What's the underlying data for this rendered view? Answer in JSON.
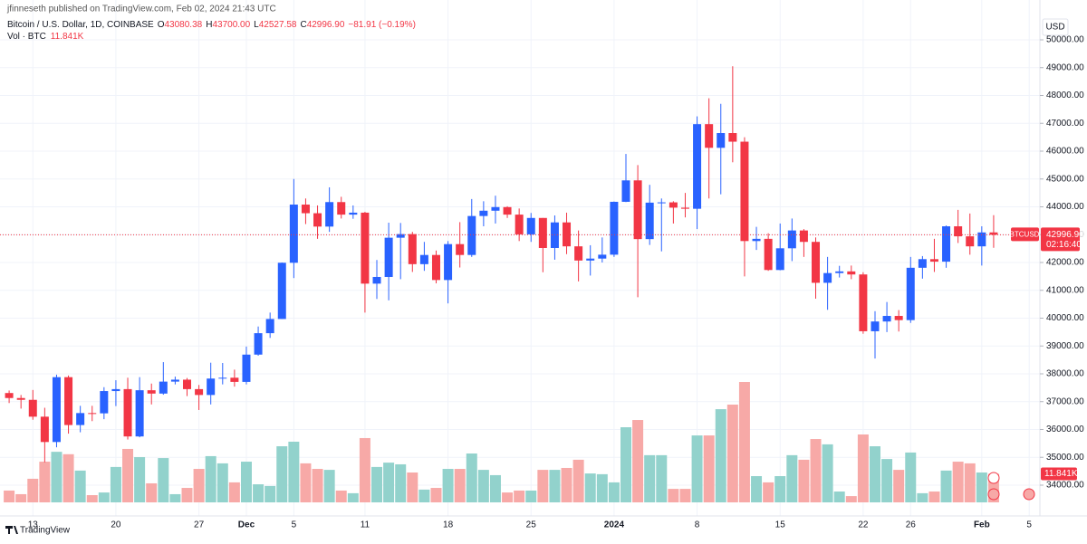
{
  "chart_data": {
    "type": "candlestick",
    "attribution": "jfinneseth published on TradingView.com, Feb 02, 2024 21:43 UTC",
    "symbol_line": "Bitcoin / U.S. Dollar, 1D, COINBASE",
    "ohlc_labels": [
      {
        "key": "O",
        "label": "43080.38"
      },
      {
        "key": "H",
        "label": "43700.00"
      },
      {
        "key": "L",
        "label": "42527.58"
      },
      {
        "key": "C",
        "label": "42996.90"
      }
    ],
    "change_label": "−81.91 (−0.19%)",
    "volume_title": "Vol · BTC",
    "volume_label": "11.841K",
    "currency": "USD",
    "brand": "TradingView",
    "last_price": {
      "symbol": "BTCUSD",
      "label": "42996.90",
      "countdown": "02:16:40"
    },
    "up_color": "#2962ff",
    "down_color": "#f23645",
    "volume_up_color": "#92d2cc",
    "volume_down_color": "#f7a9a7",
    "grid": true,
    "xlim": [
      -0.77,
      86.9
    ],
    "xticks": [
      {
        "value": 2,
        "label": "13"
      },
      {
        "value": 9,
        "label": "20"
      },
      {
        "value": 16,
        "label": "27"
      },
      {
        "value": 20,
        "label": "Dec"
      },
      {
        "value": 24,
        "label": "5"
      },
      {
        "value": 30,
        "label": "11"
      },
      {
        "value": 37,
        "label": "18"
      },
      {
        "value": 44,
        "label": "25"
      },
      {
        "value": 51,
        "label": "2024"
      },
      {
        "value": 58,
        "label": "8"
      },
      {
        "value": 65,
        "label": "15"
      },
      {
        "value": 72,
        "label": "22"
      },
      {
        "value": 76,
        "label": "26"
      },
      {
        "value": 82,
        "label": "Feb"
      },
      {
        "value": 86,
        "label": "5"
      }
    ],
    "ylim": [
      33024,
      50455
    ],
    "yticks": [
      {
        "value": 34000,
        "label": "34000.00"
      },
      {
        "value": 35000,
        "label": "35000.00"
      },
      {
        "value": 36000,
        "label": "36000.00"
      },
      {
        "value": 37000,
        "label": "37000.00"
      },
      {
        "value": 38000,
        "label": "38000.00"
      },
      {
        "value": 39000,
        "label": "39000.00"
      },
      {
        "value": 40000,
        "label": "40000.00"
      },
      {
        "value": 41000,
        "label": "41000.00"
      },
      {
        "value": 42000,
        "label": "42000.00"
      },
      {
        "value": 43000,
        "label": "43000.00"
      },
      {
        "value": 44000,
        "label": "44000.00"
      },
      {
        "value": 45000,
        "label": "45000.00"
      },
      {
        "value": 46000,
        "label": "46000.00"
      },
      {
        "value": 47000,
        "label": "47000.00"
      },
      {
        "value": 48000,
        "label": "48000.00"
      },
      {
        "value": 49000,
        "label": "49000.00"
      },
      {
        "value": 50000,
        "label": "50000.00"
      }
    ],
    "open": [
      37310,
      37130,
      37065,
      36460,
      35550,
      37880,
      36160,
      36590,
      36580,
      37380,
      37450,
      35750,
      37410,
      37290,
      37720,
      37790,
      37450,
      37240,
      37830,
      37860,
      37710,
      38690,
      39460,
      39970,
      41990,
      44080,
      43770,
      43290,
      44170,
      43720,
      43790,
      41240,
      41480,
      42890,
      43020,
      41940,
      42270,
      41370,
      42660,
      42270,
      43670,
      43860,
      43990,
      43720,
      43010,
      43600,
      42520,
      43440,
      42580,
      42070,
      42140,
      42280,
      44180,
      44950,
      42840,
      44150,
      44160,
      43970,
      43930,
      46970,
      46120,
      46650,
      46340,
      42770,
      42850,
      41730,
      42510,
      43150,
      42740,
      41270,
      41620,
      41680,
      41570,
      39530,
      39880,
      40080,
      39930,
      41810,
      42120,
      42030,
      43300,
      42940,
      42580,
      43080.38
    ],
    "high": [
      37400,
      37240,
      37420,
      36780,
      37970,
      37940,
      36850,
      36850,
      37520,
      37770,
      37860,
      37880,
      37650,
      38420,
      37900,
      37850,
      37600,
      38400,
      38390,
      38150,
      38980,
      39700,
      40200,
      42000,
      45000,
      44300,
      44050,
      44700,
      44360,
      44050,
      43820,
      42090,
      43430,
      43420,
      43100,
      42740,
      42430,
      42770,
      43450,
      44280,
      44200,
      44400,
      44020,
      43940,
      43780,
      43600,
      43690,
      43790,
      43150,
      42620,
      42900,
      44190,
      45900,
      45500,
      44790,
      44300,
      44200,
      44500,
      47250,
      47900,
      47700,
      49050,
      46500,
      43280,
      43050,
      43400,
      43580,
      43200,
      42900,
      42200,
      41880,
      41890,
      41650,
      40250,
      40580,
      40290,
      42200,
      42230,
      42850,
      43330,
      43890,
      43760,
      43300,
      43700
    ],
    "low": [
      36950,
      36750,
      36350,
      34820,
      35360,
      35850,
      35900,
      36300,
      36370,
      36840,
      35640,
      35720,
      36900,
      37250,
      37620,
      37200,
      36700,
      36900,
      37620,
      37540,
      37620,
      38650,
      39290,
      39970,
      41440,
      43380,
      42850,
      43100,
      43580,
      43570,
      40200,
      40690,
      40640,
      41400,
      41660,
      41700,
      41250,
      40530,
      41820,
      42200,
      43300,
      43400,
      43600,
      42770,
      42740,
      41650,
      42100,
      42300,
      41320,
      41530,
      42000,
      42200,
      44170,
      40750,
      42630,
      42400,
      43400,
      43620,
      43200,
      44300,
      44450,
      45600,
      41500,
      42450,
      41700,
      41720,
      42050,
      42200,
      40700,
      40300,
      41460,
      41400,
      39440,
      38550,
      39500,
      39520,
      39830,
      41420,
      41660,
      41810,
      42700,
      42280,
      41890,
      42527.58
    ],
    "close": [
      37130,
      37065,
      36460,
      35550,
      37880,
      36160,
      36590,
      36580,
      37380,
      37450,
      35750,
      37410,
      37290,
      37720,
      37790,
      37450,
      37240,
      37830,
      37860,
      37710,
      38690,
      39460,
      39970,
      41990,
      44080,
      43770,
      43290,
      44170,
      43720,
      43790,
      41240,
      41480,
      42890,
      43020,
      41940,
      42270,
      41370,
      42660,
      42270,
      43670,
      43860,
      43990,
      43720,
      43010,
      43600,
      42520,
      43440,
      42580,
      42070,
      42140,
      42280,
      44180,
      44950,
      42840,
      44150,
      44160,
      43970,
      43930,
      46970,
      46120,
      46650,
      46340,
      42770,
      42850,
      41730,
      42510,
      43150,
      42740,
      41270,
      41620,
      41680,
      41570,
      39530,
      39880,
      40080,
      39930,
      41810,
      42120,
      42030,
      43300,
      42940,
      42580,
      43080,
      42996.9
    ],
    "volume": [
      4900,
      3400,
      9800,
      16900,
      21000,
      20000,
      13200,
      3000,
      4100,
      14700,
      22200,
      18800,
      7900,
      18400,
      3400,
      6000,
      13900,
      19200,
      16200,
      8300,
      16900,
      7500,
      6800,
      23300,
      25200,
      16200,
      13900,
      13500,
      4900,
      3800,
      26700,
      14700,
      16500,
      15800,
      12400,
      5300,
      6000,
      13900,
      13900,
      20300,
      13500,
      11300,
      4100,
      4900,
      4900,
      13500,
      13500,
      14300,
      17700,
      12000,
      11700,
      8300,
      31200,
      34200,
      19600,
      19600,
      5600,
      5600,
      27800,
      27800,
      38700,
      40600,
      50000,
      10900,
      8300,
      10900,
      19600,
      17700,
      26300,
      24100,
      4500,
      2600,
      28200,
      23300,
      18000,
      13500,
      20700,
      3800,
      4500,
      13200,
      16900,
      16200,
      12400,
      11841
    ]
  }
}
